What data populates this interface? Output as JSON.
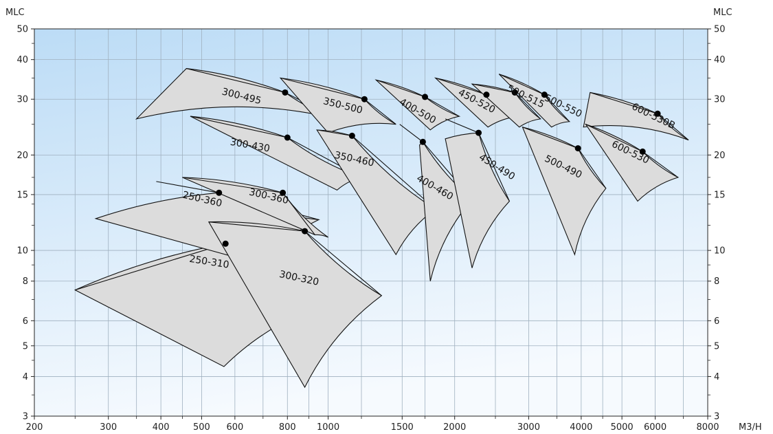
{
  "chart_data": {
    "type": "area",
    "xlabel": "M3/H",
    "ylabel_left": "MLC",
    "ylabel_right": "MLC",
    "xscale": "log",
    "yscale": "log",
    "xlim": [
      200,
      8000
    ],
    "ylim": [
      3,
      50
    ],
    "grid": true,
    "background": [
      "#bcdcf6",
      "#f6fafe"
    ],
    "x_ticks": [
      200,
      300,
      400,
      500,
      600,
      800,
      1000,
      1500,
      2000,
      3000,
      4000,
      5000,
      6000,
      8000
    ],
    "x_tick_labels": [
      "200",
      "300",
      "400",
      "500",
      "600",
      "800",
      "1000",
      "1500",
      "2000",
      "3000",
      "4000",
      "5000",
      "6000",
      "8000"
    ],
    "y_ticks": [
      3,
      4,
      5,
      6,
      8,
      10,
      15,
      20,
      30,
      40,
      50
    ],
    "y_tick_labels": [
      "3",
      "4",
      "5",
      "6",
      "8",
      "10",
      "15",
      "20",
      "30",
      "40",
      "50"
    ],
    "x_minor_ticks": [
      250,
      350,
      450,
      700,
      900,
      1200,
      1700,
      2500,
      3500,
      4500,
      7000
    ],
    "y_minor_ticks": [
      3.5,
      4.5,
      7,
      9,
      12,
      14,
      17,
      25,
      35,
      45
    ],
    "series": [
      {
        "name": "250-310",
        "corners": [
          [
            570,
            10.5
          ],
          [
            250,
            7.5
          ],
          [
            565,
            4.3
          ],
          [
            1000,
            6.8
          ]
        ],
        "top_curve": [
          [
            250,
            7.5
          ],
          [
            570,
            10.5
          ],
          [
            1000,
            6.8
          ]
        ],
        "bep": [
          570,
          10.5
        ],
        "label_at": [
          520,
          9.0
        ],
        "label_angle": 9
      },
      {
        "name": "250-360",
        "corners": [
          [
            550,
            15.2
          ],
          [
            280,
            12.6
          ],
          [
            700,
            9.0
          ],
          [
            950,
            12.5
          ]
        ],
        "top_curve": [
          [
            390,
            16.5
          ],
          [
            550,
            15.2
          ],
          [
            950,
            12.5
          ]
        ],
        "bep": [
          550,
          15.2
        ],
        "label_at": [
          500,
          14.2
        ],
        "label_angle": 13
      },
      {
        "name": "300-320",
        "corners": [
          [
            880,
            11.5
          ],
          [
            520,
            12.3
          ],
          [
            880,
            3.7
          ],
          [
            1340,
            7.2
          ]
        ],
        "top_curve": [
          [
            520,
            12.3
          ],
          [
            880,
            11.5
          ],
          [
            1340,
            7.2
          ]
        ],
        "bep": [
          880,
          11.5
        ],
        "label_at": [
          850,
          8.0
        ],
        "label_angle": 12
      },
      {
        "name": "300-360",
        "corners": [
          [
            780,
            15.2
          ],
          [
            450,
            17.0
          ],
          [
            930,
            11.2
          ],
          [
            1000,
            11.0
          ]
        ],
        "top_curve": [
          [
            450,
            17.0
          ],
          [
            780,
            15.2
          ],
          [
            930,
            11.2
          ]
        ],
        "bep": [
          780,
          15.2
        ],
        "label_at": [
          720,
          14.5
        ],
        "label_angle": 13
      },
      {
        "name": "300-430",
        "corners": [
          [
            800,
            22.7
          ],
          [
            470,
            26.5
          ],
          [
            1050,
            15.5
          ],
          [
            1200,
            17.0
          ]
        ],
        "top_curve": [
          [
            470,
            26.5
          ],
          [
            800,
            22.7
          ],
          [
            1200,
            17.0
          ]
        ],
        "bep": [
          800,
          22.7
        ],
        "label_at": [
          650,
          21.0
        ],
        "label_angle": 10
      },
      {
        "name": "300-495",
        "corners": [
          [
            790,
            31.5
          ],
          [
            460,
            37.5
          ],
          [
            350,
            26.0
          ],
          [
            1050,
            26.0
          ]
        ],
        "top_curve": [
          [
            460,
            37.5
          ],
          [
            790,
            31.5
          ],
          [
            1050,
            26.0
          ]
        ],
        "bep": [
          790,
          31.5
        ],
        "label_at": [
          620,
          30.0
        ],
        "label_angle": 14
      },
      {
        "name": "350-500",
        "corners": [
          [
            1220,
            30.0
          ],
          [
            770,
            35.0
          ],
          [
            1000,
            23.5
          ],
          [
            1450,
            25.0
          ]
        ],
        "top_curve": [
          [
            770,
            35.0
          ],
          [
            1220,
            30.0
          ],
          [
            1450,
            25.0
          ]
        ],
        "bep": [
          1220,
          30.0
        ],
        "label_at": [
          1080,
          28.0
        ],
        "label_angle": 14
      },
      {
        "name": "350-460",
        "corners": [
          [
            1140,
            23.0
          ],
          [
            940,
            24.0
          ],
          [
            1450,
            9.7
          ],
          [
            1800,
            13.5
          ]
        ],
        "top_curve": [
          [
            940,
            24.0
          ],
          [
            1140,
            23.0
          ],
          [
            1800,
            13.5
          ]
        ],
        "bep": [
          1140,
          23.0
        ],
        "label_at": [
          1150,
          19.0
        ],
        "label_angle": 12
      },
      {
        "name": "400-500",
        "corners": [
          [
            1700,
            30.5
          ],
          [
            1300,
            34.5
          ],
          [
            1750,
            24.0
          ],
          [
            2050,
            26.5
          ]
        ],
        "top_curve": [
          [
            1300,
            34.5
          ],
          [
            1700,
            30.5
          ],
          [
            2050,
            26.5
          ]
        ],
        "bep": [
          1700,
          30.5
        ],
        "label_at": [
          1620,
          27.0
        ],
        "label_angle": 30
      },
      {
        "name": "400-460",
        "corners": [
          [
            1680,
            22.0
          ],
          [
            1650,
            21.5
          ],
          [
            1750,
            8.0
          ],
          [
            2200,
            14.5
          ]
        ],
        "top_curve": [
          [
            1480,
            25.0
          ],
          [
            1680,
            22.0
          ],
          [
            2200,
            14.5
          ]
        ],
        "bep": [
          1680,
          22.0
        ],
        "label_at": [
          1780,
          15.5
        ],
        "label_angle": 30
      },
      {
        "name": "450-520",
        "corners": [
          [
            2380,
            31.0
          ],
          [
            1800,
            35.0
          ],
          [
            2400,
            24.5
          ],
          [
            2850,
            26.5
          ]
        ],
        "top_curve": [
          [
            1800,
            35.0
          ],
          [
            2380,
            31.0
          ],
          [
            2850,
            26.5
          ]
        ],
        "bep": [
          2380,
          31.0
        ],
        "label_at": [
          2240,
          29.0
        ],
        "label_angle": 28
      },
      {
        "name": "450-490",
        "corners": [
          [
            2280,
            23.5
          ],
          [
            1900,
            22.5
          ],
          [
            2200,
            8.8
          ],
          [
            2700,
            14.3
          ]
        ],
        "top_curve": [
          [
            1900,
            26.0
          ],
          [
            2280,
            23.5
          ],
          [
            2700,
            14.3
          ]
        ],
        "bep": [
          2280,
          23.5
        ],
        "label_at": [
          2500,
          18.0
        ],
        "label_angle": 32
      },
      {
        "name": "500-515",
        "corners": [
          [
            2780,
            31.5
          ],
          [
            2200,
            33.5
          ],
          [
            2850,
            24.5
          ],
          [
            3200,
            26.0
          ]
        ],
        "top_curve": [
          [
            2200,
            33.5
          ],
          [
            2780,
            31.5
          ],
          [
            3200,
            26.0
          ]
        ],
        "bep": [
          2780,
          31.5
        ],
        "label_at": [
          2930,
          30.0
        ],
        "label_angle": 26
      },
      {
        "name": "500-550",
        "corners": [
          [
            3270,
            31.0
          ],
          [
            2550,
            36.0
          ],
          [
            3400,
            24.5
          ],
          [
            3750,
            25.5
          ]
        ],
        "top_curve": [
          [
            2550,
            36.0
          ],
          [
            3270,
            31.0
          ],
          [
            3750,
            25.5
          ]
        ],
        "bep": [
          3270,
          31.0
        ],
        "label_at": [
          3600,
          28.0
        ],
        "label_angle": 26
      },
      {
        "name": "500-490",
        "corners": [
          [
            3930,
            21.0
          ],
          [
            2900,
            24.5
          ],
          [
            3860,
            9.7
          ],
          [
            4580,
            15.7
          ]
        ],
        "top_curve": [
          [
            2900,
            24.5
          ],
          [
            3930,
            21.0
          ],
          [
            4580,
            15.7
          ]
        ],
        "bep": [
          3930,
          21.0
        ],
        "label_at": [
          3600,
          18.0
        ],
        "label_angle": 26
      },
      {
        "name": "600-530B",
        "corners": [
          [
            6080,
            27.0
          ],
          [
            4200,
            31.5
          ],
          [
            4050,
            24.5
          ],
          [
            7200,
            22.3
          ]
        ],
        "top_curve": [
          [
            4200,
            31.5
          ],
          [
            6080,
            27.0
          ],
          [
            7200,
            22.3
          ]
        ],
        "bep": [
          6080,
          27.0
        ],
        "label_at": [
          5900,
          26.0
        ],
        "label_angle": 26
      },
      {
        "name": "600-530",
        "corners": [
          [
            5600,
            20.5
          ],
          [
            4100,
            25.0
          ],
          [
            5450,
            14.3
          ],
          [
            6800,
            17.0
          ]
        ],
        "top_curve": [
          [
            4100,
            25.0
          ],
          [
            5600,
            20.5
          ],
          [
            6800,
            17.0
          ]
        ],
        "bep": [
          5600,
          20.5
        ],
        "label_at": [
          5200,
          20.0
        ],
        "label_angle": 26
      }
    ]
  }
}
